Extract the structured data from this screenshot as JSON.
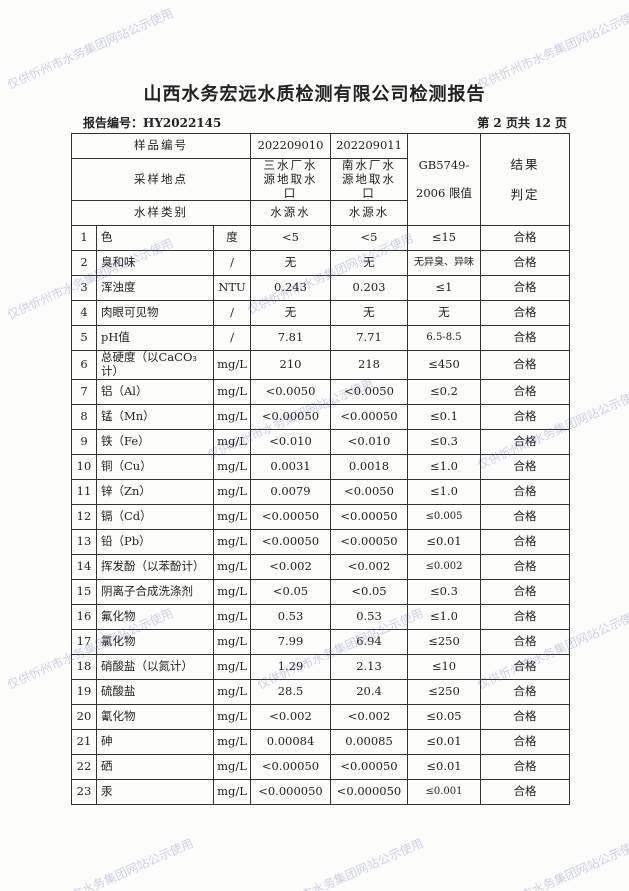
{
  "title": "山西水务宏远水质检测有限公司检测报告",
  "report_no": "报告编号：HY2022145",
  "page_info": "第 2 页共 12 页",
  "watermark": "仅供忻州市水务集团网站公示使用",
  "header": {
    "sample_no_label": "样品编号",
    "sample1_no": "202209010",
    "sample2_no": "202209011",
    "location_label": "采样地点",
    "sample1_loc": "三水厂水源地取水口",
    "sample2_loc": "南水厂水源地取水口",
    "type_label": "水样类别",
    "sample1_type": "水源水",
    "sample2_type": "水源水",
    "standard": "GB5749-2006 限值",
    "result": "结果判定"
  },
  "rows": [
    {
      "no": "1",
      "name": "色",
      "unit": "度",
      "s1": "<5",
      "s2": "<5",
      "limit": "≤15",
      "result": "合格"
    },
    {
      "no": "2",
      "name": "臭和味",
      "unit": "/",
      "s1": "无",
      "s2": "无",
      "limit": "无异臭、异味",
      "result": "合格"
    },
    {
      "no": "3",
      "name": "浑浊度",
      "unit": "NTU",
      "s1": "0.243",
      "s2": "0.203",
      "limit": "≤1",
      "result": "合格"
    },
    {
      "no": "4",
      "name": "肉眼可见物",
      "unit": "/",
      "s1": "无",
      "s2": "无",
      "limit": "无",
      "result": "合格"
    },
    {
      "no": "5",
      "name": "pH值",
      "unit": "/",
      "s1": "7.81",
      "s2": "7.71",
      "limit": "6.5-8.5",
      "result": "合格"
    },
    {
      "no": "6",
      "name": "总硬度（以CaCO₃计）",
      "unit": "mg/L",
      "s1": "210",
      "s2": "218",
      "limit": "≤450",
      "result": "合格"
    },
    {
      "no": "7",
      "name": "铝（Al）",
      "unit": "mg/L",
      "s1": "<0.0050",
      "s2": "<0.0050",
      "limit": "≤0.2",
      "result": "合格"
    },
    {
      "no": "8",
      "name": "锰（Mn）",
      "unit": "mg/L",
      "s1": "<0.00050",
      "s2": "<0.00050",
      "limit": "≤0.1",
      "result": "合格"
    },
    {
      "no": "9",
      "name": "铁（Fe）",
      "unit": "mg/L",
      "s1": "<0.010",
      "s2": "<0.010",
      "limit": "≤0.3",
      "result": "合格"
    },
    {
      "no": "10",
      "name": "铜（Cu）",
      "unit": "mg/L",
      "s1": "0.0031",
      "s2": "0.0018",
      "limit": "≤1.0",
      "result": "合格"
    },
    {
      "no": "11",
      "name": "锌（Zn）",
      "unit": "mg/L",
      "s1": "0.0079",
      "s2": "<0.0050",
      "limit": "≤1.0",
      "result": "合格"
    },
    {
      "no": "12",
      "name": "镉（Cd）",
      "unit": "mg/L",
      "s1": "<0.00050",
      "s2": "<0.00050",
      "limit": "≤0.005",
      "result": "合格"
    },
    {
      "no": "13",
      "name": "铅（Pb）",
      "unit": "mg/L",
      "s1": "<0.00050",
      "s2": "<0.00050",
      "limit": "≤0.01",
      "result": "合格"
    },
    {
      "no": "14",
      "name": "挥发酚（以苯酚计）",
      "unit": "mg/L",
      "s1": "<0.002",
      "s2": "<0.002",
      "limit": "≤0.002",
      "result": "合格"
    },
    {
      "no": "15",
      "name": "阴离子合成洗涤剂",
      "unit": "mg/L",
      "s1": "<0.05",
      "s2": "<0.05",
      "limit": "≤0.3",
      "result": "合格"
    },
    {
      "no": "16",
      "name": "氟化物",
      "unit": "mg/L",
      "s1": "0.53",
      "s2": "0.53",
      "limit": "≤1.0",
      "result": "合格"
    },
    {
      "no": "17",
      "name": "氯化物",
      "unit": "mg/L",
      "s1": "7.99",
      "s2": "6.94",
      "limit": "≤250",
      "result": "合格"
    },
    {
      "no": "18",
      "name": "硝酸盐（以氮计）",
      "unit": "mg/L",
      "s1": "1.29",
      "s2": "2.13",
      "limit": "≤10",
      "result": "合格"
    },
    {
      "no": "19",
      "name": "硫酸盐",
      "unit": "mg/L",
      "s1": "28.5",
      "s2": "20.4",
      "limit": "≤250",
      "result": "合格"
    },
    {
      "no": "20",
      "name": "氰化物",
      "unit": "mg/L",
      "s1": "<0.002",
      "s2": "<0.002",
      "limit": "≤0.05",
      "result": "合格"
    },
    {
      "no": "21",
      "name": "砷",
      "unit": "mg/L",
      "s1": "0.00084",
      "s2": "0.00085",
      "limit": "≤0.01",
      "result": "合格"
    },
    {
      "no": "22",
      "name": "硒",
      "unit": "mg/L",
      "s1": "<0.00050",
      "s2": "<0.00050",
      "limit": "≤0.01",
      "result": "合格"
    },
    {
      "no": "23",
      "name": "汞",
      "unit": "mg/L",
      "s1": "<0.000050",
      "s2": "<0.000050",
      "limit": "≤0.001",
      "result": "合格"
    }
  ]
}
